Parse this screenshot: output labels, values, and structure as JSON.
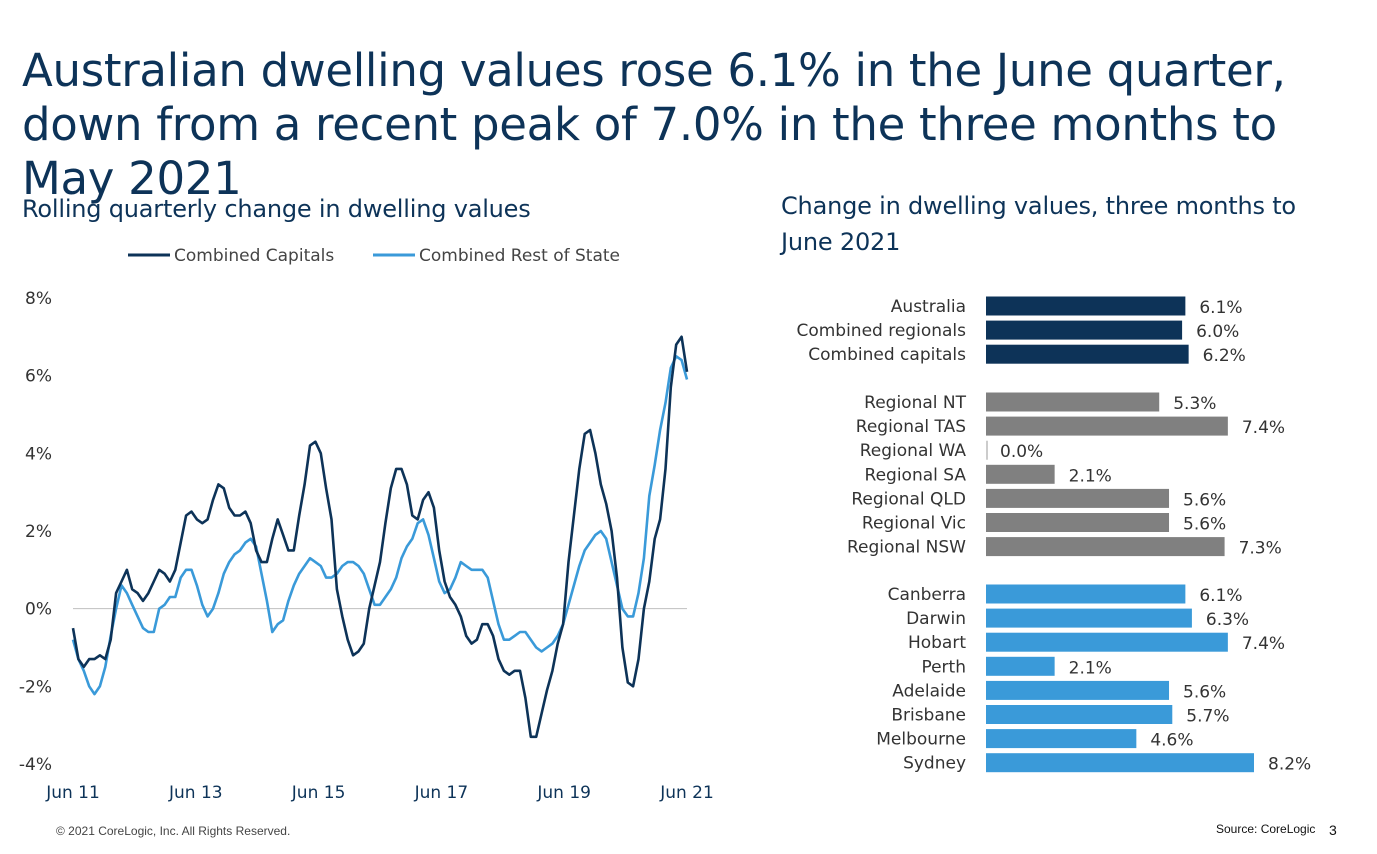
{
  "headline": "Australian dwelling values rose 6.1% in the June quarter, down from a recent peak of 7.0% in the three months to May 2021",
  "footer": {
    "copyright": "© 2021 CoreLogic,  Inc. All Rights Reserved.",
    "source": "Source: CoreLogic",
    "page_number": "3"
  },
  "colors": {
    "capitals_navy": "#0d3358",
    "rest_of_state_blue": "#3a9ad9",
    "regional_grey": "#808080",
    "zero_line": "#bfbfbf"
  },
  "chart_data": [
    {
      "type": "line",
      "title": "Rolling quarterly change in dwelling values",
      "legend_placement": "top",
      "grid": false,
      "ylim": [
        -4,
        8
      ],
      "y_ticks": [
        "8%",
        "6%",
        "4%",
        "2%",
        "0%",
        "-2%",
        "-4%"
      ],
      "y_tick_values": [
        8,
        6,
        4,
        2,
        0,
        -2,
        -4
      ],
      "x_ticks": [
        "Jun 11",
        "Jun 13",
        "Jun 15",
        "Jun 17",
        "Jun 19",
        "Jun 21"
      ],
      "x_start": "Jun 11",
      "x_end": "Jun 21",
      "series": [
        {
          "name": "Combined Capitals",
          "color": "#0d3358",
          "values": [
            -0.5,
            -1.3,
            -1.5,
            -1.3,
            -1.3,
            -1.2,
            -1.3,
            -0.8,
            0.4,
            0.7,
            1.0,
            0.5,
            0.4,
            0.2,
            0.4,
            0.7,
            1.0,
            0.9,
            0.7,
            1.0,
            1.7,
            2.4,
            2.5,
            2.3,
            2.2,
            2.3,
            2.8,
            3.2,
            3.1,
            2.6,
            2.4,
            2.4,
            2.5,
            2.2,
            1.5,
            1.2,
            1.2,
            1.8,
            2.3,
            1.9,
            1.5,
            1.5,
            2.4,
            3.2,
            4.2,
            4.3,
            4.0,
            3.1,
            2.3,
            0.5,
            -0.2,
            -0.8,
            -1.2,
            -1.1,
            -0.9,
            0.0,
            0.6,
            1.2,
            2.2,
            3.1,
            3.6,
            3.6,
            3.2,
            2.4,
            2.3,
            2.8,
            3.0,
            2.6,
            1.5,
            0.7,
            0.3,
            0.1,
            -0.2,
            -0.7,
            -0.9,
            -0.8,
            -0.4,
            -0.4,
            -0.7,
            -1.3,
            -1.6,
            -1.7,
            -1.6,
            -1.6,
            -2.3,
            -3.3,
            -3.3,
            -2.7,
            -2.1,
            -1.6,
            -0.9,
            -0.4,
            1.2,
            2.4,
            3.6,
            4.5,
            4.6,
            4.0,
            3.2,
            2.7,
            2.0,
            0.8,
            -1.0,
            -1.9,
            -2.0,
            -1.3,
            0.0,
            0.7,
            1.8,
            2.3,
            3.6,
            5.7,
            6.8,
            7.0,
            6.1
          ]
        },
        {
          "name": "Combined Rest of State",
          "color": "#3a9ad9",
          "values": [
            -0.8,
            -1.3,
            -1.6,
            -2.0,
            -2.2,
            -2.0,
            -1.5,
            -0.7,
            0.0,
            0.6,
            0.4,
            0.1,
            -0.2,
            -0.5,
            -0.6,
            -0.6,
            0.0,
            0.1,
            0.3,
            0.3,
            0.8,
            1.0,
            1.0,
            0.6,
            0.1,
            -0.2,
            0.0,
            0.4,
            0.9,
            1.2,
            1.4,
            1.5,
            1.7,
            1.8,
            1.6,
            0.9,
            0.2,
            -0.6,
            -0.4,
            -0.3,
            0.2,
            0.6,
            0.9,
            1.1,
            1.3,
            1.2,
            1.1,
            0.8,
            0.8,
            0.9,
            1.1,
            1.2,
            1.2,
            1.1,
            0.9,
            0.5,
            0.1,
            0.1,
            0.3,
            0.5,
            0.8,
            1.3,
            1.6,
            1.8,
            2.2,
            2.3,
            1.9,
            1.3,
            0.7,
            0.4,
            0.5,
            0.8,
            1.2,
            1.1,
            1.0,
            1.0,
            1.0,
            0.8,
            0.2,
            -0.4,
            -0.8,
            -0.8,
            -0.7,
            -0.6,
            -0.6,
            -0.8,
            -1.0,
            -1.1,
            -1.0,
            -0.9,
            -0.7,
            -0.4,
            0.1,
            0.6,
            1.1,
            1.5,
            1.7,
            1.9,
            2.0,
            1.8,
            1.2,
            0.6,
            0.0,
            -0.2,
            -0.2,
            0.4,
            1.3,
            2.9,
            3.7,
            4.6,
            5.3,
            6.2,
            6.5,
            6.4,
            5.9
          ]
        }
      ]
    },
    {
      "type": "bar",
      "orientation": "horizontal",
      "title": "Change in dwelling values, three months to June 2021",
      "xlim": [
        0,
        8.2
      ],
      "groups": [
        {
          "color": "#0d3358",
          "categories": [
            "Australia",
            "Combined regionals",
            "Combined capitals"
          ],
          "values": [
            6.1,
            6.0,
            6.2
          ],
          "labels": [
            "6.1%",
            "6.0%",
            "6.2%"
          ]
        },
        {
          "color": "#808080",
          "categories": [
            "Regional NT",
            "Regional TAS",
            "Regional WA",
            "Regional SA",
            "Regional QLD",
            "Regional Vic",
            "Regional NSW"
          ],
          "values": [
            5.3,
            7.4,
            0.0,
            2.1,
            5.6,
            5.6,
            7.3
          ],
          "labels": [
            "5.3%",
            "7.4%",
            "0.0%",
            "2.1%",
            "5.6%",
            "5.6%",
            "7.3%"
          ]
        },
        {
          "color": "#3a9ad9",
          "categories": [
            "Canberra",
            "Darwin",
            "Hobart",
            "Perth",
            "Adelaide",
            "Brisbane",
            "Melbourne",
            "Sydney"
          ],
          "values": [
            6.1,
            6.3,
            7.4,
            2.1,
            5.6,
            5.7,
            4.6,
            8.2
          ],
          "labels": [
            "6.1%",
            "6.3%",
            "7.4%",
            "2.1%",
            "5.6%",
            "5.7%",
            "4.6%",
            "8.2%"
          ]
        }
      ]
    }
  ]
}
